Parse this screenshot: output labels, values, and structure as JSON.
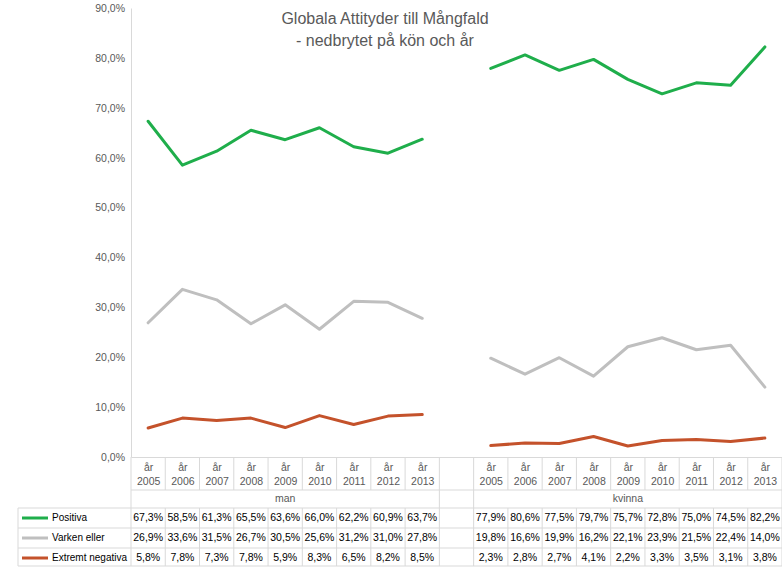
{
  "chart_data": {
    "type": "line",
    "title": "Globala Attityder till Mångfald",
    "subtitle": "- nedbrytet på kön och år",
    "categories": [
      "år 2005",
      "år 2006",
      "år 2007",
      "år 2008",
      "år 2009",
      "år 2010",
      "år 2011",
      "år 2012",
      "år 2013",
      null,
      "år 2005",
      "år 2006",
      "år 2007",
      "år 2008",
      "år 2009",
      "år 2010",
      "år 2011",
      "år 2012",
      "år 2013"
    ],
    "category_groups": [
      "man",
      "man",
      "man",
      "man",
      "man",
      "man",
      "man",
      "man",
      "man",
      null,
      "kvinna",
      "kvinna",
      "kvinna",
      "kvinna",
      "kvinna",
      "kvinna",
      "kvinna",
      "kvinna",
      "kvinna"
    ],
    "ylim": [
      0,
      90
    ],
    "yticks": [
      {
        "value": 0,
        "label": "0,0%"
      },
      {
        "value": 10,
        "label": "10,0%"
      },
      {
        "value": 20,
        "label": "20,0%"
      },
      {
        "value": 30,
        "label": "30,0%"
      },
      {
        "value": 40,
        "label": "40,0%"
      },
      {
        "value": 50,
        "label": "50,0%"
      },
      {
        "value": 60,
        "label": "60,0%"
      },
      {
        "value": 70,
        "label": "70,0%"
      },
      {
        "value": 80,
        "label": "80,0%"
      },
      {
        "value": 90,
        "label": "90,0%"
      }
    ],
    "grid": false,
    "series": [
      {
        "name": "Positiva",
        "color": "#1fae4b",
        "values": [
          67.3,
          58.5,
          61.3,
          65.5,
          63.6,
          66.0,
          62.2,
          60.9,
          63.7,
          null,
          77.9,
          80.6,
          77.5,
          79.7,
          75.7,
          72.8,
          75.0,
          74.5,
          82.2
        ],
        "value_labels": [
          "67,3%",
          "58,5%",
          "61,3%",
          "65,5%",
          "63,6%",
          "66,0%",
          "62,2%",
          "60,9%",
          "63,7%",
          null,
          "77,9%",
          "80,6%",
          "77,5%",
          "79,7%",
          "75,7%",
          "72,8%",
          "75,0%",
          "74,5%",
          "82,2%"
        ]
      },
      {
        "name": "Varken eller",
        "color": "#bfbfbf",
        "values": [
          26.9,
          33.6,
          31.5,
          26.7,
          30.5,
          25.6,
          31.2,
          31.0,
          27.8,
          null,
          19.8,
          16.6,
          19.9,
          16.2,
          22.1,
          23.9,
          21.5,
          22.4,
          14.0
        ],
        "value_labels": [
          "26,9%",
          "33,6%",
          "31,5%",
          "26,7%",
          "30,5%",
          "25,6%",
          "31,2%",
          "31,0%",
          "27,8%",
          null,
          "19,8%",
          "16,6%",
          "19,9%",
          "16,2%",
          "22,1%",
          "23,9%",
          "21,5%",
          "22,4%",
          "14,0%"
        ]
      },
      {
        "name": "Extremt negativa",
        "color": "#c4522b",
        "values": [
          5.8,
          7.8,
          7.3,
          7.8,
          5.9,
          8.3,
          6.5,
          8.2,
          8.5,
          null,
          2.3,
          2.8,
          2.7,
          4.1,
          2.2,
          3.3,
          3.5,
          3.1,
          3.8
        ],
        "value_labels": [
          "5,8%",
          "7,8%",
          "7,3%",
          "7,8%",
          "5,9%",
          "8,3%",
          "6,5%",
          "8,2%",
          "8,5%",
          null,
          "2,3%",
          "2,8%",
          "2,7%",
          "4,1%",
          "2,2%",
          "3,3%",
          "3,5%",
          "3,1%",
          "3,8%"
        ]
      }
    ]
  }
}
